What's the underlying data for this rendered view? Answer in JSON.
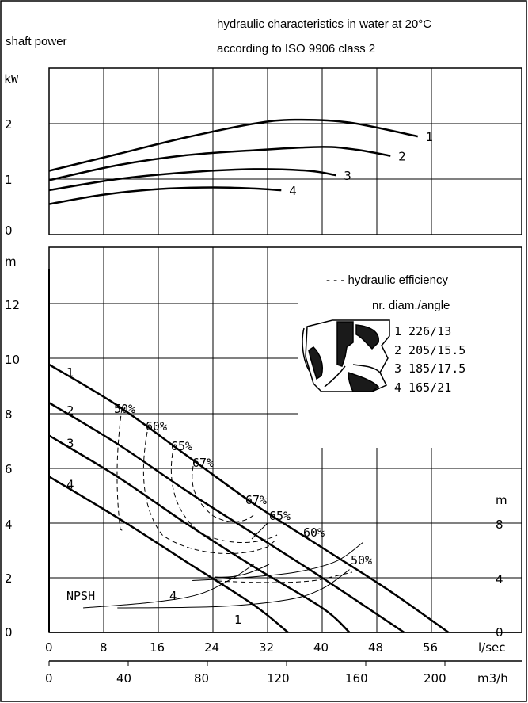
{
  "header": {
    "title_line1": "hydraulic characteristics in water at 20°C",
    "title_line2": "according to ISO 9906 class 2",
    "power_label": "shaft power"
  },
  "chart_data": [
    {
      "type": "line",
      "name": "shaft power",
      "ylabel": "kW",
      "ylim": [
        0,
        3
      ],
      "yticks": [
        "0",
        "1",
        "2"
      ],
      "xlim": [
        0,
        60
      ],
      "series": [
        {
          "name": "1",
          "x": [
            0,
            10,
            20,
            30,
            36,
            44,
            54
          ],
          "y": [
            1.15,
            1.45,
            1.75,
            2.0,
            2.07,
            2.02,
            1.77
          ]
        },
        {
          "name": "2",
          "x": [
            0,
            10,
            20,
            30,
            40,
            45,
            50
          ],
          "y": [
            0.98,
            1.25,
            1.43,
            1.52,
            1.58,
            1.53,
            1.42
          ]
        },
        {
          "name": "3",
          "x": [
            0,
            10,
            20,
            30,
            38,
            42
          ],
          "y": [
            0.8,
            1.0,
            1.12,
            1.18,
            1.15,
            1.07
          ]
        },
        {
          "name": "4",
          "x": [
            0,
            8,
            16,
            24,
            30,
            34
          ],
          "y": [
            0.55,
            0.72,
            0.82,
            0.85,
            0.83,
            0.8
          ]
        }
      ]
    },
    {
      "type": "line",
      "name": "head",
      "ylabel": "m",
      "ylim": [
        0,
        14
      ],
      "yticks": [
        "0",
        "2",
        "4",
        "6",
        "8",
        "10",
        "12"
      ],
      "right_ylabel": "m",
      "right_yticks": [
        "0",
        "4",
        "8"
      ],
      "xlabel_top": "l/sec",
      "xticks": [
        "0",
        "8",
        "16",
        "24",
        "32",
        "40",
        "48",
        "56"
      ],
      "xlabel_bottom": "m3/h",
      "xticks2": [
        "0",
        "40",
        "80",
        "120",
        "160",
        "200"
      ],
      "legend_title": "- - - hydraulic efficiency",
      "legend_header": "nr.  diam./angle",
      "legend_entries": [
        "1  226/13",
        "2  205/15.5",
        "3  185/17.5",
        "4  165/21"
      ],
      "npsh_label": "NPSH",
      "series": [
        {
          "name": "1",
          "x": [
            0,
            10,
            20,
            30,
            40,
            50,
            58.5
          ],
          "y": [
            9.8,
            8.3,
            6.5,
            4.7,
            3.1,
            1.5,
            0
          ]
        },
        {
          "name": "2",
          "x": [
            0,
            10,
            20,
            30,
            40,
            52
          ],
          "y": [
            8.4,
            6.9,
            5.2,
            3.6,
            2.0,
            0
          ]
        },
        {
          "name": "3",
          "x": [
            0,
            10,
            20,
            30,
            40,
            44
          ],
          "y": [
            7.2,
            5.7,
            4.0,
            2.4,
            0.9,
            0
          ]
        },
        {
          "name": "4",
          "x": [
            0,
            10,
            20,
            30,
            35
          ],
          "y": [
            5.7,
            4.2,
            2.6,
            1.0,
            0
          ]
        }
      ],
      "npsh_series": [
        {
          "name": "4",
          "x": [
            5,
            15,
            22,
            27,
            30
          ],
          "y": [
            0.9,
            1.1,
            1.4,
            2.0,
            2.5
          ]
        },
        {
          "name": "1",
          "x": [
            10,
            25,
            35,
            40,
            44
          ],
          "y": [
            0.9,
            0.95,
            1.2,
            1.6,
            2.3
          ]
        },
        {
          "name": "",
          "x": [
            21,
            28,
            36,
            42,
            46
          ],
          "y": [
            1.9,
            2.0,
            2.2,
            2.6,
            3.3
          ]
        }
      ],
      "efficiency_labels": [
        "50%",
        "60%",
        "65%",
        "67%",
        "67%",
        "65%",
        "60%",
        "50%"
      ]
    }
  ]
}
